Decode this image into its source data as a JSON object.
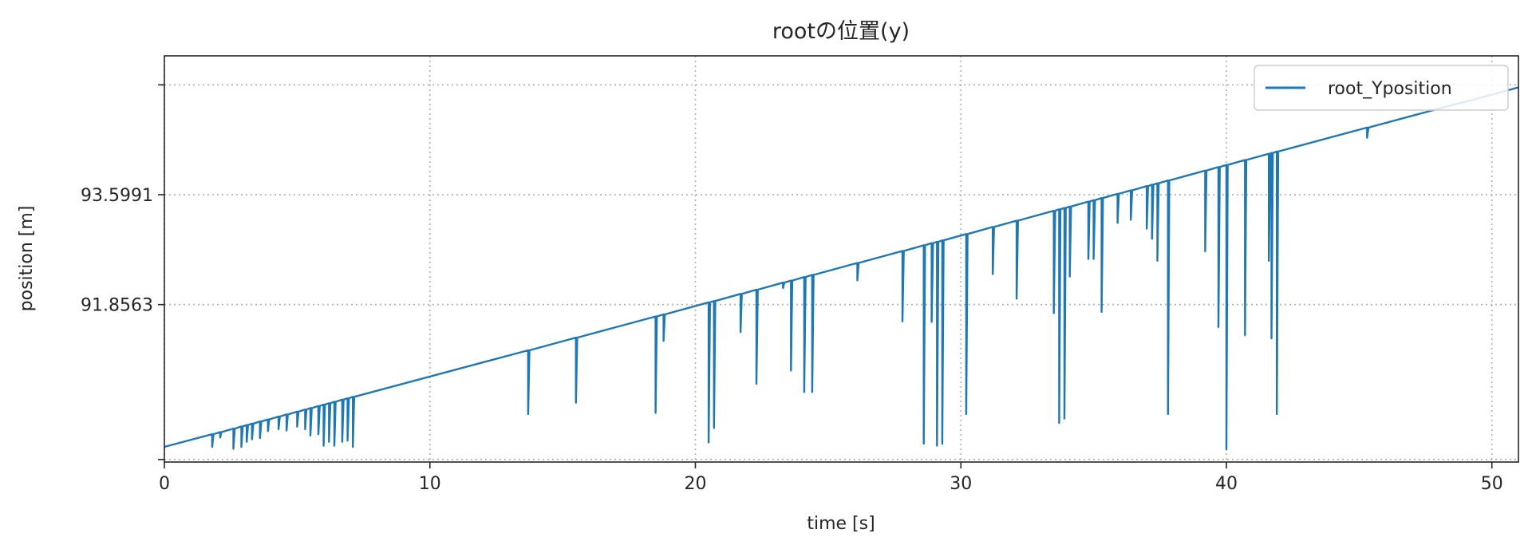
{
  "chart_data": {
    "type": "line",
    "title": "rootの位置(y)",
    "xlabel": "time [s]",
    "ylabel": "position [m]",
    "xlim": [
      0,
      51
    ],
    "ylim": [
      89.36,
      95.8
    ],
    "x_ticks": [
      {
        "value": 0,
        "label": "0"
      },
      {
        "value": 10,
        "label": "10"
      },
      {
        "value": 20,
        "label": "20"
      },
      {
        "value": 30,
        "label": "30"
      },
      {
        "value": 40,
        "label": "40"
      },
      {
        "value": 50,
        "label": "50"
      }
    ],
    "y_ticks": [
      {
        "value": 89.4,
        "label": ""
      },
      {
        "value": 91.8563,
        "label": "91.8563"
      },
      {
        "value": 93.5991,
        "label": "93.5991"
      },
      {
        "value": 95.34,
        "label": ""
      }
    ],
    "grid": true,
    "legend_position": "top-right",
    "series": [
      {
        "name": "root_Yposition",
        "color": "#1f77b4",
        "trend": {
          "x": [
            0,
            51
          ],
          "y": [
            89.6,
            95.3
          ]
        },
        "dips": [
          [
            1.8,
            89.6
          ],
          [
            2.1,
            89.75
          ],
          [
            2.6,
            89.57
          ],
          [
            2.9,
            89.6
          ],
          [
            3.1,
            89.68
          ],
          [
            3.3,
            89.72
          ],
          [
            3.6,
            89.74
          ],
          [
            3.9,
            89.85
          ],
          [
            4.3,
            89.88
          ],
          [
            4.6,
            89.86
          ],
          [
            5.0,
            89.92
          ],
          [
            5.3,
            89.88
          ],
          [
            5.5,
            89.78
          ],
          [
            5.8,
            89.8
          ],
          [
            6.0,
            89.62
          ],
          [
            6.2,
            89.68
          ],
          [
            6.4,
            89.62
          ],
          [
            6.7,
            89.68
          ],
          [
            6.9,
            89.7
          ],
          [
            7.1,
            89.6
          ],
          [
            13.7,
            90.12
          ],
          [
            15.5,
            90.3
          ],
          [
            18.5,
            90.14
          ],
          [
            18.8,
            91.28
          ],
          [
            20.5,
            89.67
          ],
          [
            20.7,
            89.9
          ],
          [
            21.7,
            91.42
          ],
          [
            22.3,
            90.6
          ],
          [
            23.3,
            92.12
          ],
          [
            23.6,
            90.81
          ],
          [
            24.1,
            90.47
          ],
          [
            24.4,
            90.47
          ],
          [
            26.1,
            92.24
          ],
          [
            27.8,
            91.59
          ],
          [
            28.6,
            89.65
          ],
          [
            28.9,
            91.58
          ],
          [
            29.1,
            89.62
          ],
          [
            29.3,
            89.65
          ],
          [
            30.2,
            90.12
          ],
          [
            31.2,
            92.34
          ],
          [
            32.1,
            91.95
          ],
          [
            33.5,
            91.72
          ],
          [
            33.7,
            89.98
          ],
          [
            33.9,
            90.05
          ],
          [
            34.1,
            92.3
          ],
          [
            34.8,
            92.58
          ],
          [
            35.0,
            92.58
          ],
          [
            35.3,
            91.74
          ],
          [
            35.9,
            93.15
          ],
          [
            36.4,
            93.2
          ],
          [
            37.0,
            93.06
          ],
          [
            37.2,
            92.9
          ],
          [
            37.4,
            92.55
          ],
          [
            37.8,
            90.12
          ],
          [
            39.2,
            92.7
          ],
          [
            39.7,
            91.5
          ],
          [
            40.0,
            89.56
          ],
          [
            40.7,
            91.37
          ],
          [
            41.6,
            92.55
          ],
          [
            41.7,
            91.32
          ],
          [
            41.9,
            90.12
          ],
          [
            45.3,
            94.5
          ],
          [
            48.9,
            95.05
          ]
        ]
      }
    ]
  }
}
